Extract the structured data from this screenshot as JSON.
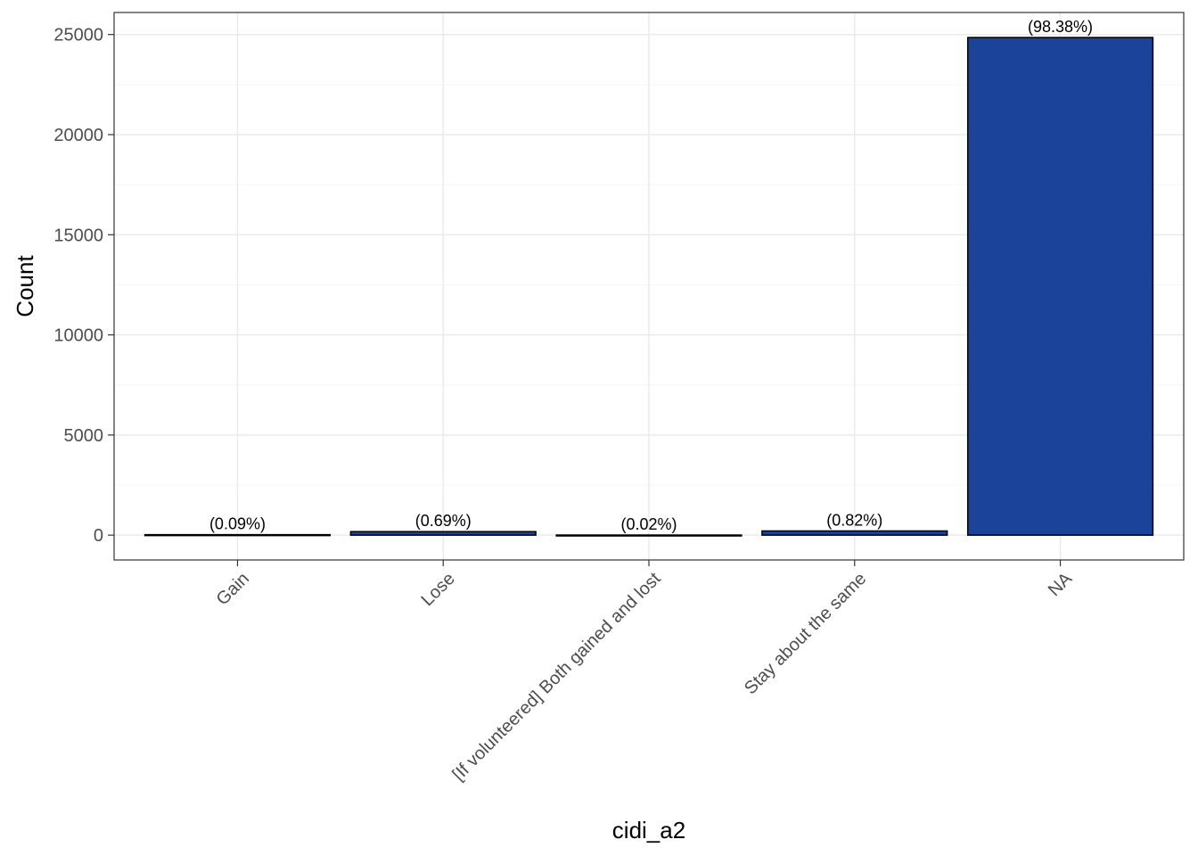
{
  "chart_data": {
    "type": "bar",
    "categories": [
      "Gain",
      "Lose",
      "[If volunteered] Both gained and lost",
      "Stay about the same",
      "NA"
    ],
    "values": [
      23,
      175,
      5,
      208,
      24850
    ],
    "labels": [
      "(0.09%)",
      "(0.69%)",
      "(0.02%)",
      "(0.82%)",
      "(98.38%)"
    ],
    "xlabel": "cidi_a2",
    "ylabel": "Count",
    "yticks": [
      0,
      5000,
      10000,
      15000,
      20000,
      25000
    ],
    "ylim": [
      -1240,
      26100
    ],
    "grid": true,
    "legend": "none",
    "colors": {
      "bar_fill": "#1a4399",
      "bar_stroke": "#000000",
      "grid_major": "#ebebeb",
      "grid_minor": "#f5f5f5",
      "panel_border": "#333333"
    }
  }
}
